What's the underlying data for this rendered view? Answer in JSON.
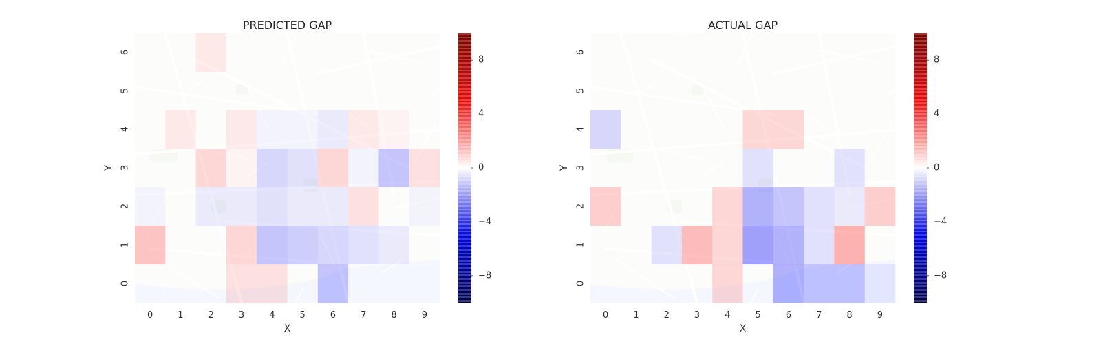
{
  "chart_data": [
    {
      "type": "heatmap",
      "title": "PREDICTED GAP",
      "xlabel": "X",
      "ylabel": "Y",
      "x_ticks": [
        "0",
        "1",
        "2",
        "3",
        "4",
        "5",
        "6",
        "7",
        "8",
        "9"
      ],
      "y_ticks": [
        "0",
        "1",
        "2",
        "3",
        "4",
        "5",
        "6"
      ],
      "color_scale": {
        "min": -10,
        "max": 10,
        "ticks": [
          -8,
          -4,
          0,
          4,
          8
        ],
        "colormap": "seismic",
        "low_color": "#0000ff",
        "mid_color": "#ffffff",
        "high_color": "#ff0000"
      },
      "background": "street-map",
      "rows_y6_to_y0": [
        [
          0,
          0,
          1,
          0,
          0,
          0,
          0,
          0,
          0,
          0
        ],
        [
          0,
          0,
          0,
          0,
          0,
          0,
          0,
          0,
          0,
          0
        ],
        [
          0,
          1,
          0,
          1,
          -0.5,
          -0.5,
          -1,
          1,
          0.5,
          0
        ],
        [
          0,
          0,
          2,
          0.5,
          -2,
          -1.5,
          2,
          -0.5,
          -3,
          1.5
        ],
        [
          -0.5,
          0,
          -1,
          -1,
          -1.5,
          -1,
          -1,
          1.5,
          0,
          -0.5
        ],
        [
          3,
          0,
          0,
          2,
          -3,
          -2.5,
          -2,
          -1.5,
          -1,
          0
        ],
        [
          0,
          0,
          0,
          1.5,
          1.5,
          0,
          -3,
          0,
          0,
          0
        ]
      ]
    },
    {
      "type": "heatmap",
      "title": "ACTUAL GAP",
      "xlabel": "X",
      "ylabel": "Y",
      "x_ticks": [
        "0",
        "1",
        "2",
        "3",
        "4",
        "5",
        "6",
        "7",
        "8",
        "9"
      ],
      "y_ticks": [
        "0",
        "1",
        "2",
        "3",
        "4",
        "5",
        "6"
      ],
      "color_scale": {
        "min": -10,
        "max": 10,
        "ticks": [
          -8,
          -4,
          0,
          4,
          8
        ],
        "colormap": "seismic",
        "low_color": "#0000ff",
        "mid_color": "#ffffff",
        "high_color": "#ff0000"
      },
      "background": "street-map",
      "rows_y6_to_y0": [
        [
          0,
          0,
          0,
          0,
          0,
          0,
          0,
          0,
          0,
          0
        ],
        [
          0,
          0,
          0,
          0,
          0,
          0,
          0,
          0,
          0,
          0
        ],
        [
          -2,
          0,
          0,
          0,
          0,
          2,
          2,
          0,
          0,
          0
        ],
        [
          0,
          0,
          0,
          0,
          0,
          -1.5,
          0,
          0,
          -1.5,
          0
        ],
        [
          2.5,
          0,
          0,
          0,
          2,
          -4,
          -3,
          -1.5,
          -1,
          2.5
        ],
        [
          0,
          0,
          -1.5,
          3.5,
          2,
          -5,
          -4,
          -1.5,
          4,
          0
        ],
        [
          0,
          0,
          0,
          0,
          2,
          0,
          -4,
          -3,
          -3,
          -1
        ]
      ]
    }
  ]
}
